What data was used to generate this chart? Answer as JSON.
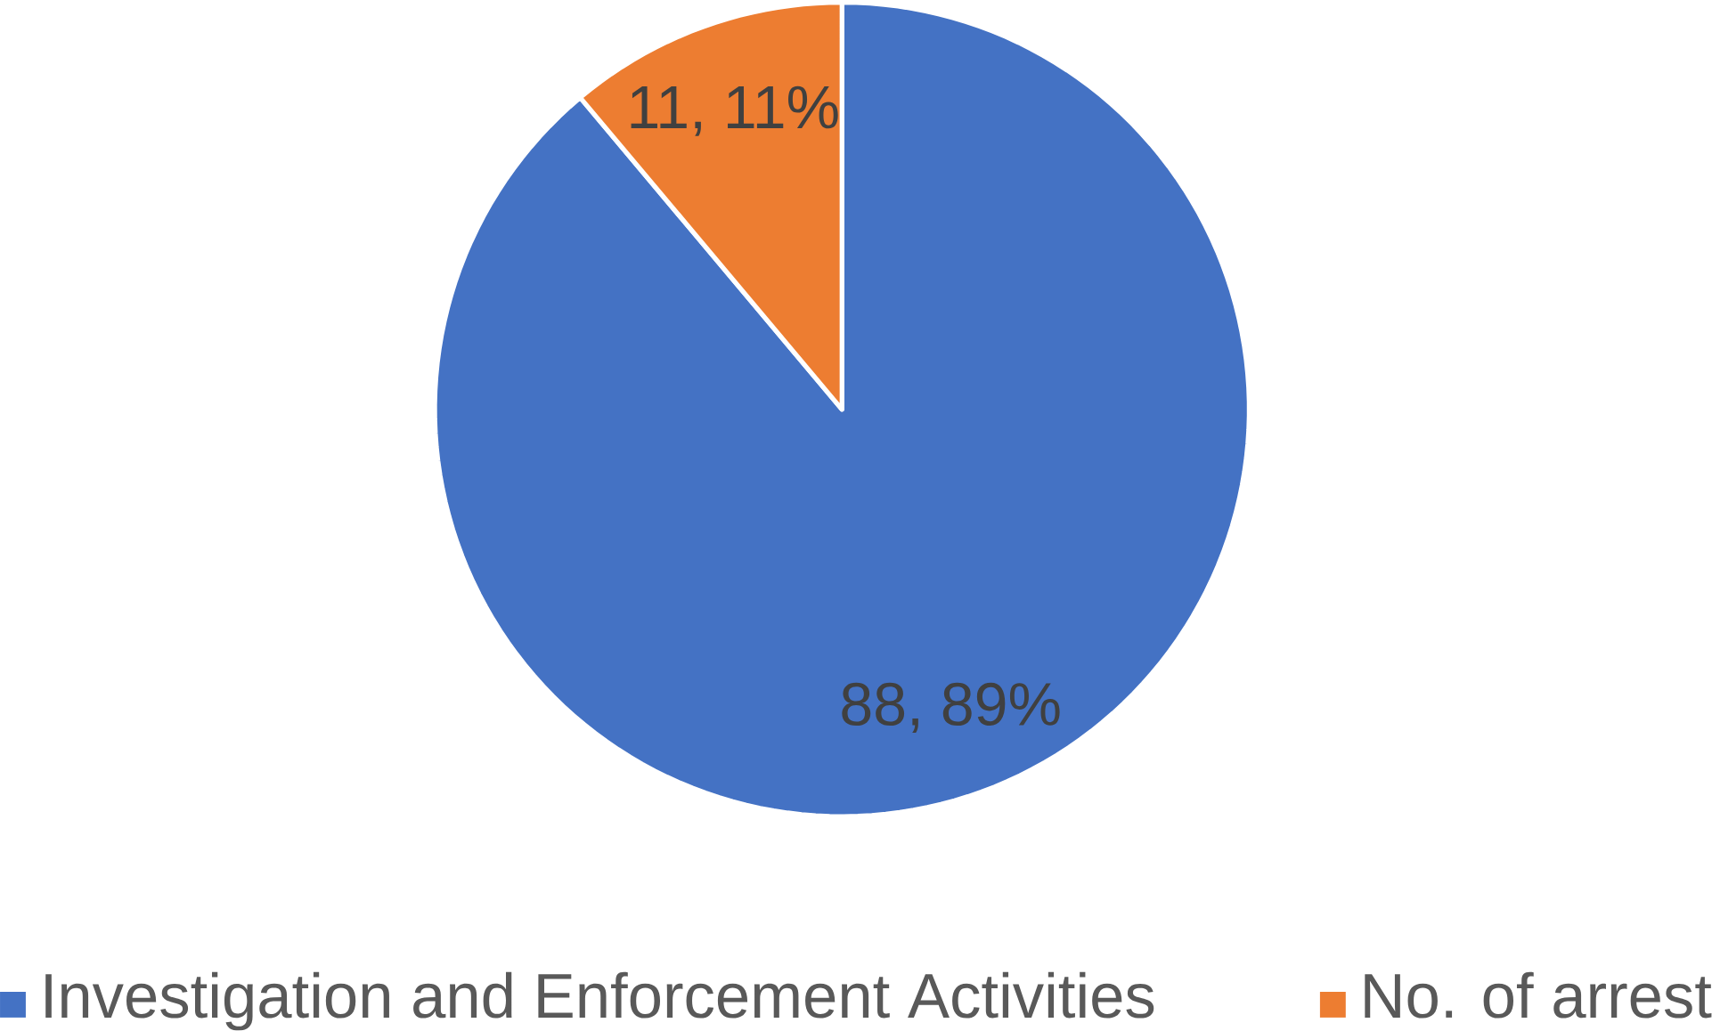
{
  "chart_data": {
    "type": "pie",
    "categories": [
      "Investigation and Enforcement Activities",
      "No. of arrest"
    ],
    "values": [
      88,
      11
    ],
    "colors": [
      "#4472c4",
      "#ed7d31"
    ],
    "value_labels": [
      "88, 89%",
      "11, 11%"
    ],
    "legend": "bottom"
  }
}
